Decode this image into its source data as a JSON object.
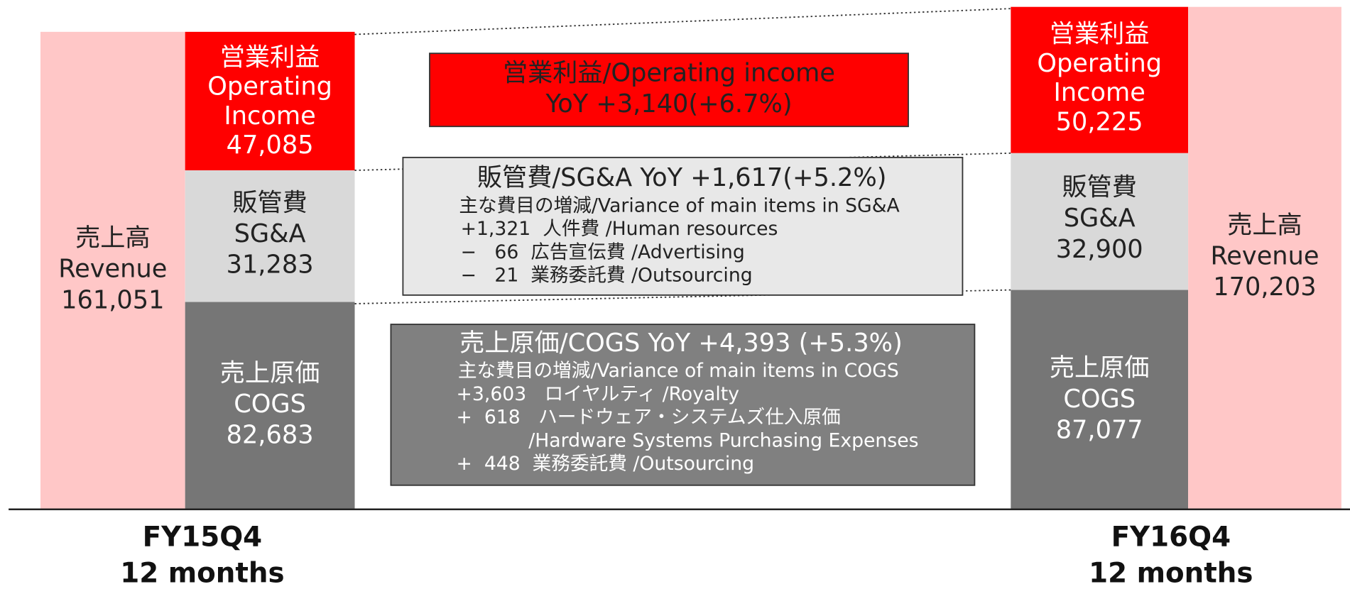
{
  "fy15q4": {
    "period": [
      "FY15Q4",
      "12 months"
    ],
    "revenue": [
      "売上高",
      "Revenue",
      "161,051"
    ],
    "operating_income": [
      "営業利益",
      "Operating",
      "Income",
      "47,085"
    ],
    "sga": [
      "販管費",
      "SG&A",
      "31,283"
    ],
    "cogs": [
      "売上原価",
      "COGS",
      "82,683"
    ]
  },
  "fy16q4": {
    "period": [
      "FY16Q4",
      "12 months"
    ],
    "revenue": [
      "売上高",
      "Revenue",
      "170,203"
    ],
    "operating_income": [
      "営業利益",
      "Operating",
      "Income",
      "50,225"
    ],
    "sga": [
      "販管費",
      "SG&A",
      "32,900"
    ],
    "cogs": [
      "売上原価",
      "COGS",
      "87,077"
    ]
  },
  "variance": {
    "operating_income": [
      "営業利益/Operating income",
      "YoY +3,140(+6.7%)"
    ],
    "sga": {
      "title": "販管費/SG&A YoY +1,617(+5.2%)",
      "subtitle": "主な費目の増減/Variance of main items in SG&A",
      "items": [
        "+1,321  人件費 /Human resources",
        "−   66  広告宣伝費 /Advertising",
        "−   21  業務委託費 /Outsourcing"
      ]
    },
    "cogs": {
      "title": "売上原価/COGS YoY +4,393 (+5.3%)",
      "subtitle": "主な費目の増減/Variance of main items in COGS",
      "items": [
        "+3,603   ロイヤルティ /Royalty",
        "+  618   ハードウェア・システムズ仕入原価",
        "            /Hardware Systems Purchasing Expenses",
        "+  448  業務委託費 /Outsourcing"
      ]
    }
  }
}
